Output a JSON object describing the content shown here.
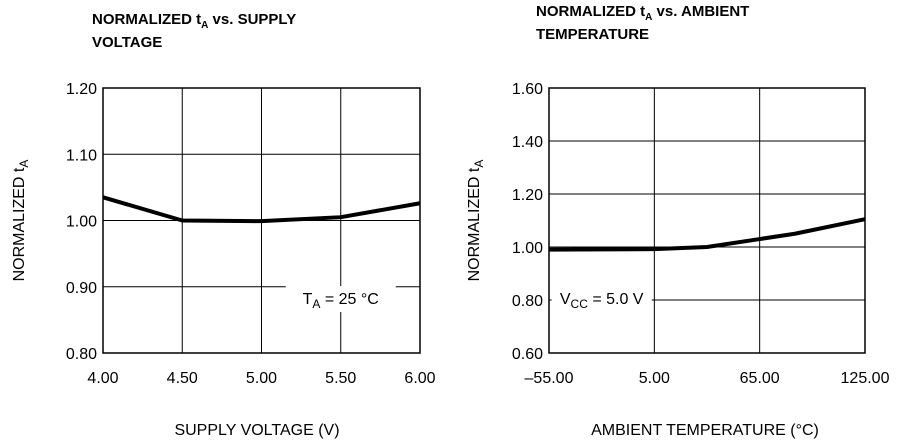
{
  "chart_data": [
    {
      "type": "line",
      "title": {
        "line1_before": "NORMALIZED t",
        "line1_sub": "A",
        "line1_after": " vs. SUPPLY",
        "line2": "VOLTAGE"
      },
      "xlabel": "SUPPLY  VOLTAGE (V)",
      "ylabel": {
        "main": "NORMALIZED t",
        "sub": "A"
      },
      "xlim": [
        4.0,
        6.0
      ],
      "ylim": [
        0.8,
        1.2
      ],
      "xticks": [
        4.0,
        4.5,
        5.0,
        5.5,
        6.0
      ],
      "yticks": [
        0.8,
        0.9,
        1.0,
        1.1,
        1.2
      ],
      "xtick_labels": [
        "4.00",
        "4.50",
        "5.00",
        "5.50",
        "6.00"
      ],
      "ytick_labels": [
        "0.80",
        "0.90",
        "1.00",
        "1.10",
        "1.20"
      ],
      "grid": true,
      "annotation": {
        "main": "T",
        "sub": "A",
        "rest": " = 25 °C",
        "at": [
          5.5,
          0.88
        ]
      },
      "series": [
        {
          "x": [
            4.0,
            4.5,
            5.0,
            5.5,
            6.0
          ],
          "y": [
            1.035,
            1.0,
            0.999,
            1.005,
            1.026
          ]
        }
      ]
    },
    {
      "type": "line",
      "title": {
        "line1_before": "NORMALIZED t",
        "line1_sub": "A",
        "line1_after": " vs. AMBIENT",
        "line2": "TEMPERATURE"
      },
      "xlabel": "AMBIENT  TEMPERATURE (°C)",
      "ylabel": {
        "main": "NORMALIZED t",
        "sub": "A"
      },
      "xlim": [
        -55,
        125
      ],
      "ylim": [
        0.6,
        1.6
      ],
      "xticks": [
        -55,
        5,
        65,
        125
      ],
      "yticks": [
        0.6,
        0.8,
        1.0,
        1.2,
        1.4,
        1.6
      ],
      "xtick_labels": [
        "–55.00",
        "5.00",
        "65.00",
        "125.00"
      ],
      "ytick_labels": [
        "0.60",
        "0.80",
        "1.00",
        "1.20",
        "1.40",
        "1.60"
      ],
      "grid": true,
      "annotation": {
        "main": "V",
        "sub": "CC",
        "rest": " = 5.0 V",
        "at": [
          -25,
          0.8
        ]
      },
      "series": [
        {
          "x": [
            -55,
            5,
            35,
            65,
            85,
            125
          ],
          "y": [
            0.99,
            0.992,
            1.0,
            1.03,
            1.05,
            1.105
          ]
        }
      ]
    }
  ]
}
